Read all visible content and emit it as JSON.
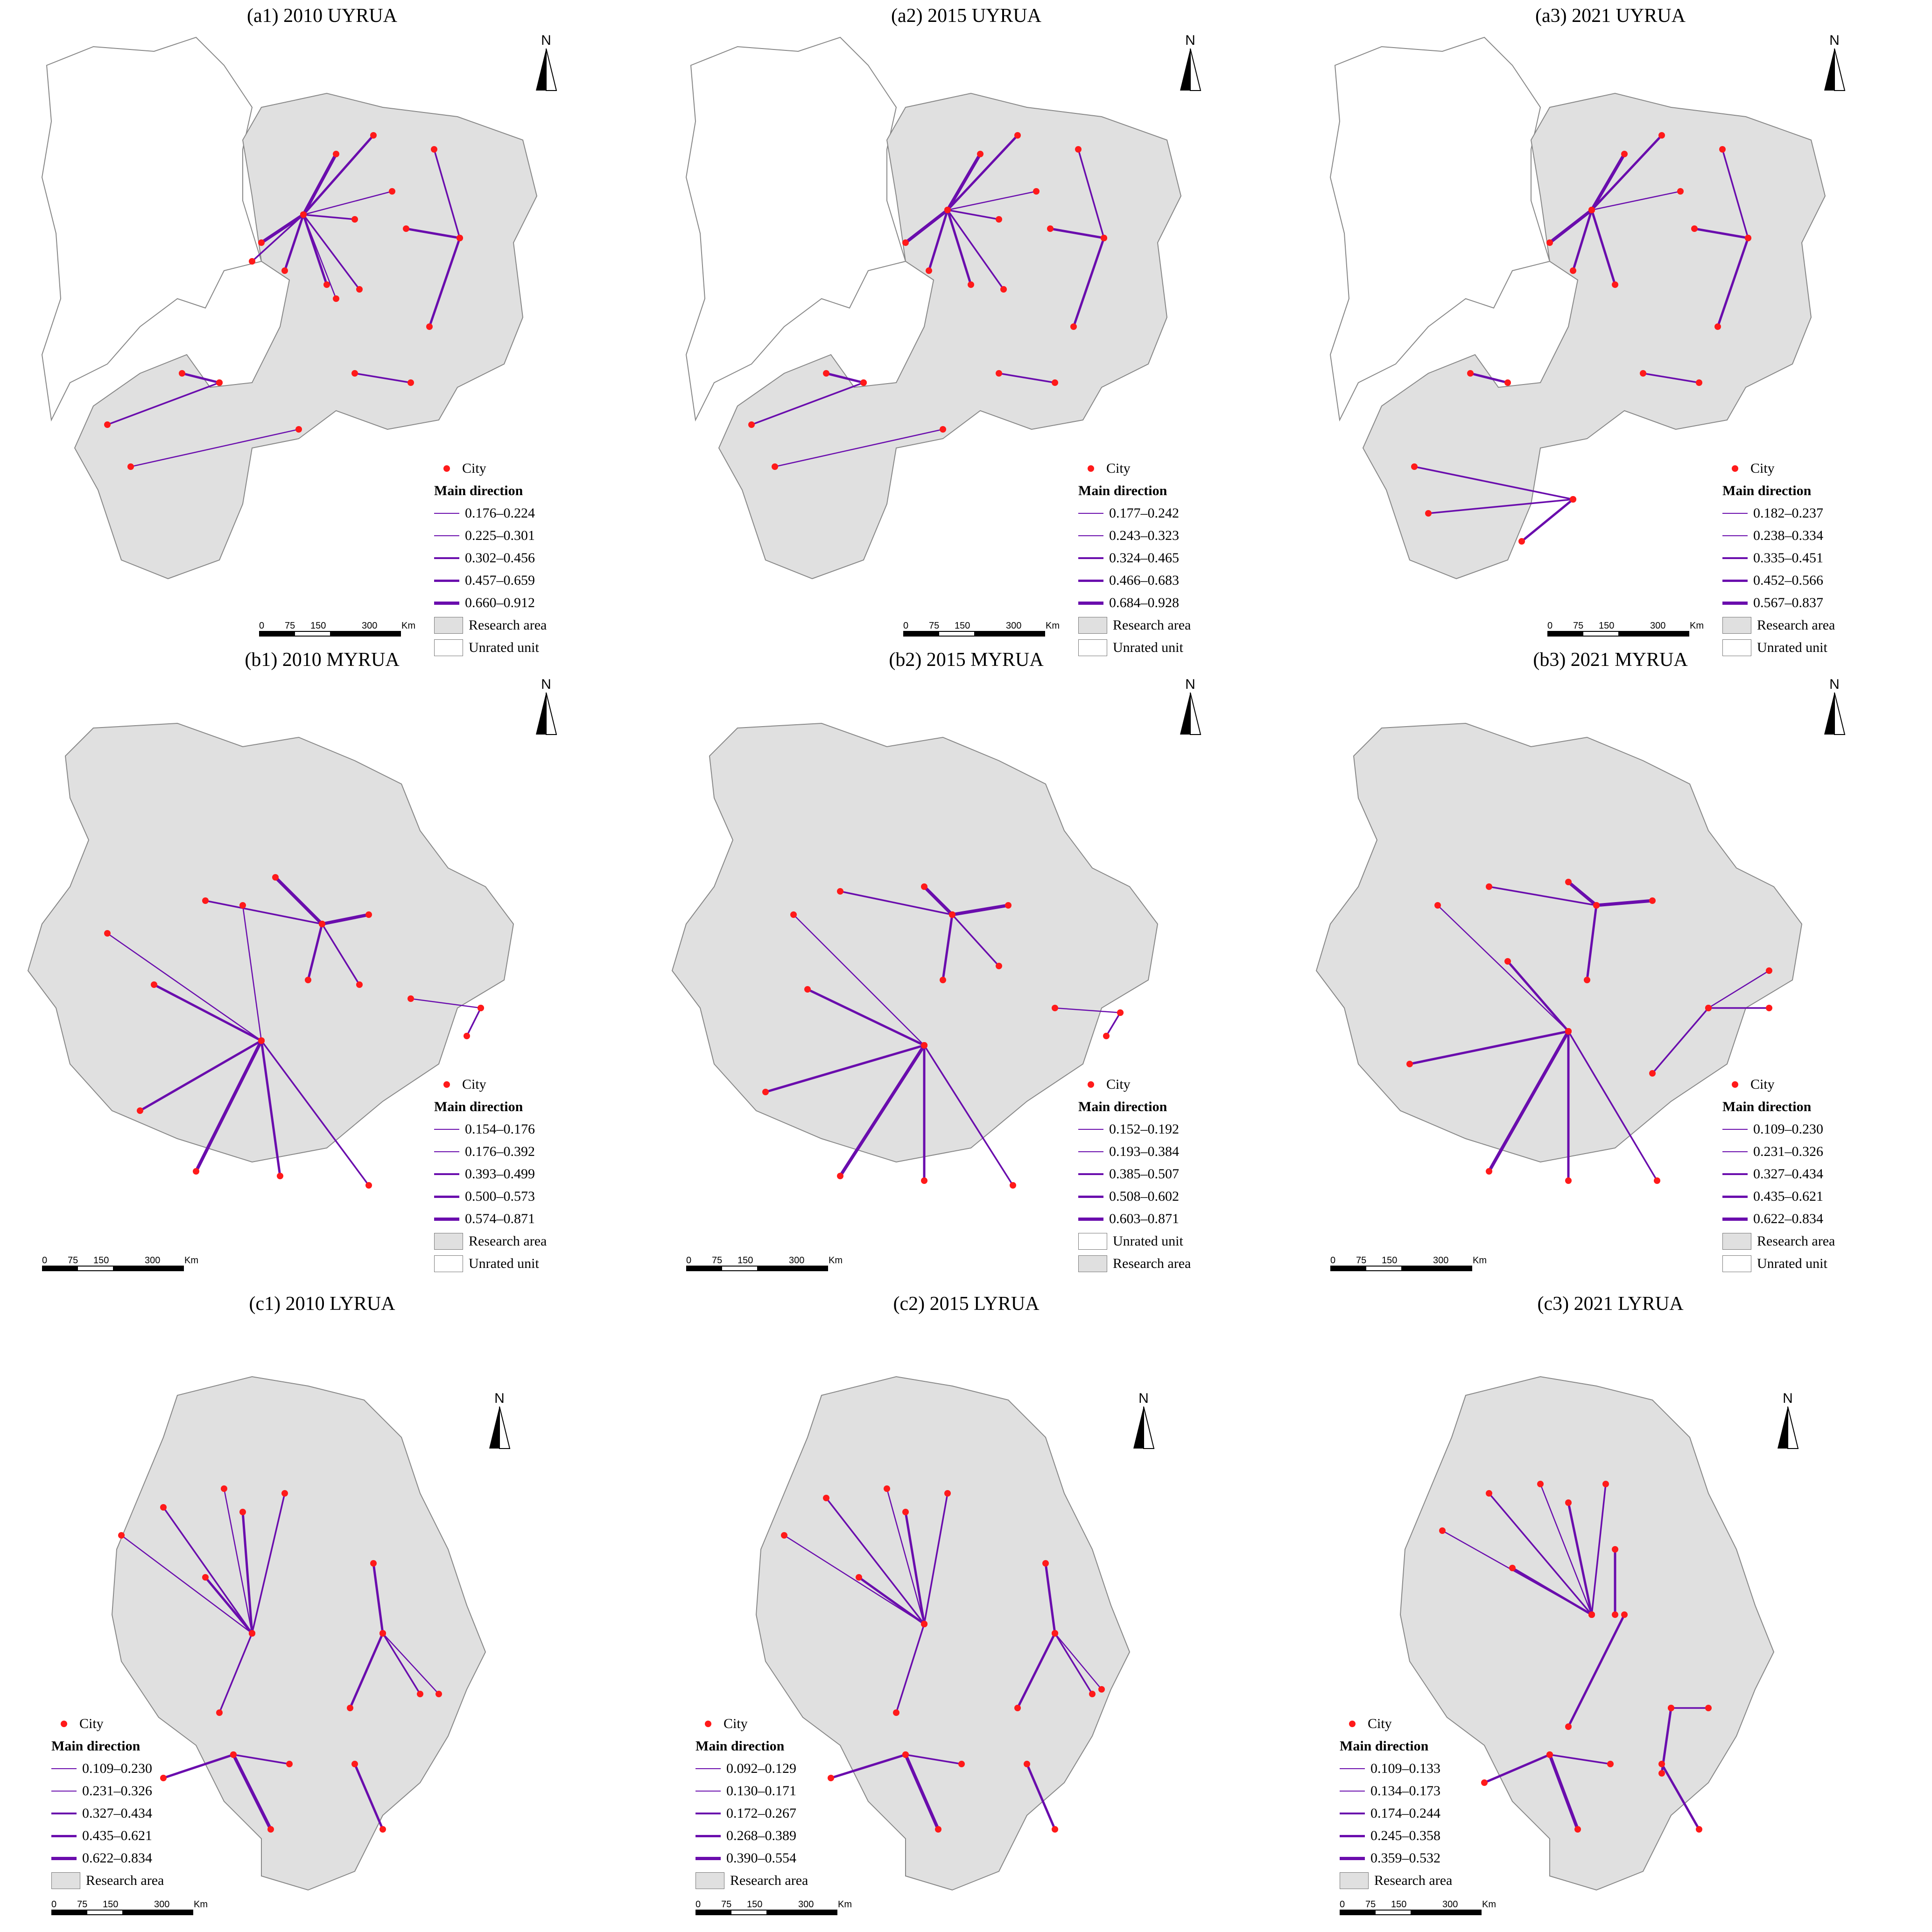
{
  "figure": {
    "panels": [
      {
        "id": "a1",
        "title": "(a1) 2010  UYRUA",
        "legend_title": "Main direction",
        "city_label": "City",
        "classes": [
          "0.176–0.224",
          "0.225–0.301",
          "0.302–0.456",
          "0.457–0.659",
          "0.660–0.912"
        ],
        "area_items": [
          "Research area",
          "Unrated unit"
        ],
        "scale_labels": [
          "0",
          "75",
          "150",
          "300",
          "Km"
        ]
      },
      {
        "id": "a2",
        "title": "(a2) 2015  UYRUA",
        "legend_title": "Main direction",
        "city_label": "City",
        "classes": [
          "0.177–0.242",
          "0.243–0.323",
          "0.324–0.465",
          "0.466–0.683",
          "0.684–0.928"
        ],
        "area_items": [
          "Research area",
          "Unrated unit"
        ],
        "scale_labels": [
          "0",
          "75",
          "150",
          "300",
          "Km"
        ]
      },
      {
        "id": "a3",
        "title": "(a3) 2021  UYRUA",
        "legend_title": "Main direction",
        "city_label": "City",
        "classes": [
          "0.182–0.237",
          "0.238–0.334",
          "0.335–0.451",
          "0.452–0.566",
          "0.567–0.837"
        ],
        "area_items": [
          "Research area",
          "Unrated unit"
        ],
        "scale_labels": [
          "0",
          "75",
          "150",
          "300",
          "Km"
        ]
      },
      {
        "id": "b1",
        "title": "(b1) 2010  MYRUA",
        "legend_title": "Main direction",
        "city_label": "City",
        "classes": [
          "0.154–0.176",
          "0.176–0.392",
          "0.393–0.499",
          "0.500–0.573",
          "0.574–0.871"
        ],
        "area_items": [
          "Research area",
          "Unrated unit"
        ],
        "scale_labels": [
          "0",
          "75",
          "150",
          "300",
          "Km"
        ]
      },
      {
        "id": "b2",
        "title": "(b2) 2015  MYRUA",
        "legend_title": "Main direction",
        "city_label": "City",
        "classes": [
          "0.152–0.192",
          "0.193–0.384",
          "0.385–0.507",
          "0.508–0.602",
          "0.603–0.871"
        ],
        "area_items": [
          "Unrated unit",
          "Research area"
        ],
        "scale_labels": [
          "0",
          "75",
          "150",
          "300",
          "Km"
        ]
      },
      {
        "id": "b3",
        "title": "(b3) 2021  MYRUA",
        "legend_title": "Main direction",
        "city_label": "City",
        "classes": [
          "0.109–0.230",
          "0.231–0.326",
          "0.327–0.434",
          "0.435–0.621",
          "0.622–0.834"
        ],
        "area_items": [
          "Research area",
          "Unrated unit"
        ],
        "scale_labels": [
          "0",
          "75",
          "150",
          "300",
          "Km"
        ]
      },
      {
        "id": "c1",
        "title": "(c1) 2010  LYRUA",
        "legend_title": "Main direction",
        "city_label": "City",
        "classes": [
          "0.109–0.230",
          "0.231–0.326",
          "0.327–0.434",
          "0.435–0.621",
          "0.622–0.834"
        ],
        "area_items": [
          "Research area"
        ],
        "scale_labels": [
          "0",
          "75",
          "150",
          "300",
          "Km"
        ]
      },
      {
        "id": "c2",
        "title": "(c2) 2015  LYRUA",
        "legend_title": "Main direction",
        "city_label": "City",
        "classes": [
          "0.092–0.129",
          "0.130–0.171",
          "0.172–0.267",
          "0.268–0.389",
          "0.390–0.554"
        ],
        "area_items": [
          "Research area"
        ],
        "scale_labels": [
          "0",
          "75",
          "150",
          "300",
          "Km"
        ]
      },
      {
        "id": "c3",
        "title": "(c3) 2021  LYRUA",
        "legend_title": "Main direction",
        "city_label": "City",
        "classes": [
          "0.109–0.133",
          "0.134–0.173",
          "0.174–0.244",
          "0.245–0.358",
          "0.359–0.532"
        ],
        "area_items": [
          "Research area"
        ],
        "scale_labels": [
          "0",
          "75",
          "150",
          "300",
          "Km"
        ]
      }
    ],
    "north_label": "N",
    "colors": {
      "research_area": "#e0e0e0",
      "unrated_unit": "#ffffff",
      "city": "#ff1a1a",
      "direction_line": "#6a0dad",
      "boundary": "#888888"
    }
  }
}
